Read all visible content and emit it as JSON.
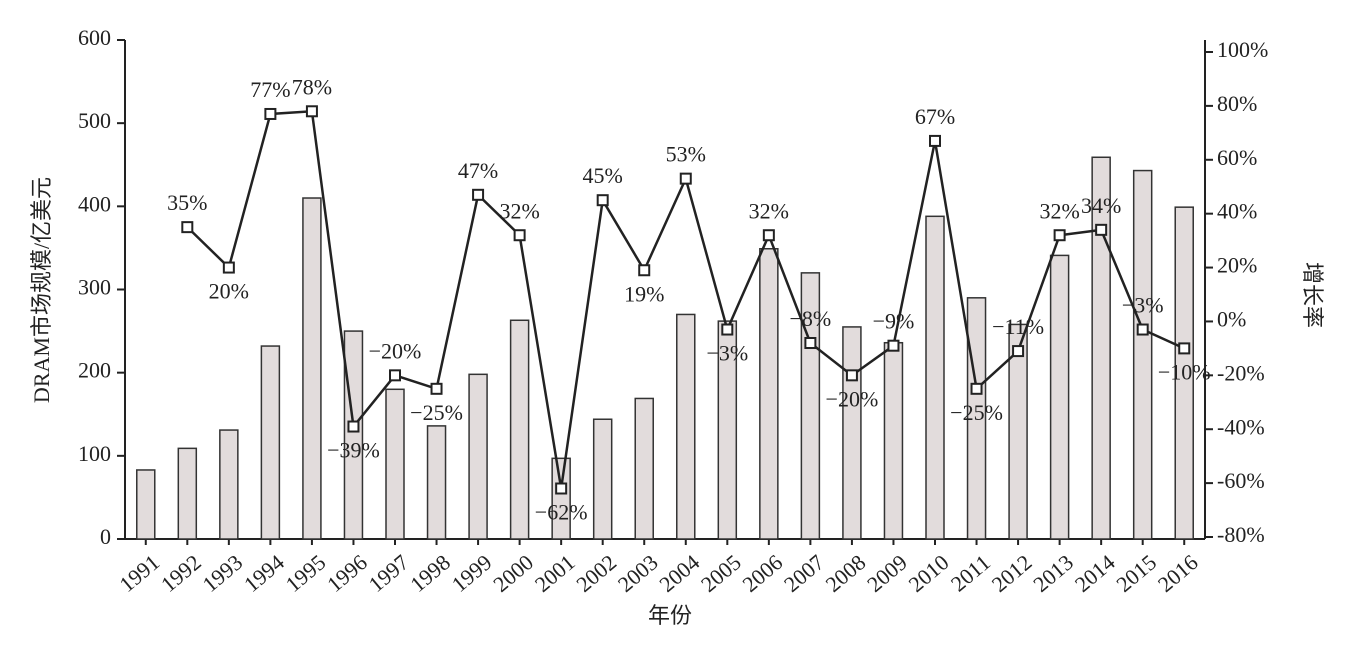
{
  "chart_data": {
    "type": "bar_line",
    "categories": [
      "1991",
      "1992",
      "1993",
      "1994",
      "1995",
      "1996",
      "1997",
      "1998",
      "1999",
      "2000",
      "2001",
      "2002",
      "2003",
      "2004",
      "2005",
      "2006",
      "2007",
      "2008",
      "2009",
      "2010",
      "2011",
      "2012",
      "2013",
      "2014",
      "2015",
      "2016"
    ],
    "x_label": "年份",
    "y_label": "DRAM市场规模/亿美元",
    "y2_label": "增长率",
    "ylim": [
      0,
      600
    ],
    "yticks": [
      0,
      100,
      200,
      300,
      400,
      500,
      600
    ],
    "y2lim": [
      -80,
      100
    ],
    "y2ticks": [
      {
        "value": -80,
        "label": "-80%"
      },
      {
        "value": -60,
        "label": "-60%"
      },
      {
        "value": -40,
        "label": "-40%"
      },
      {
        "value": -20,
        "label": "-20%"
      },
      {
        "value": 0,
        "label": "0%"
      },
      {
        "value": 20,
        "label": "20%"
      },
      {
        "value": 40,
        "label": "40%"
      },
      {
        "value": 60,
        "label": "60%"
      },
      {
        "value": 80,
        "label": "80%"
      },
      {
        "value": 100,
        "label": "100%"
      }
    ],
    "series": [
      {
        "type": "bar",
        "color": "#e2dcdc",
        "values": [
          83,
          109,
          131,
          232,
          410,
          250,
          180,
          136,
          198,
          263,
          97,
          144,
          169,
          270,
          262,
          349,
          320,
          255,
          236,
          388,
          290,
          258,
          341,
          459,
          443,
          399
        ]
      },
      {
        "type": "line",
        "axis": "y2",
        "color": "#222222",
        "values": [
          null,
          35,
          20,
          77,
          78,
          -39,
          -20,
          -25,
          47,
          32,
          -62,
          45,
          19,
          53,
          -3,
          32,
          -8,
          -20,
          -9,
          67,
          -25,
          -11,
          32,
          34,
          -3,
          -10
        ],
        "value_labels": [
          null,
          "35%",
          "20%",
          "77%",
          "78%",
          "−39%",
          "−20%",
          "−25%",
          "47%",
          "32%",
          "−62%",
          "45%",
          "19%",
          "53%",
          "−3%",
          "32%",
          "−8%",
          "−20%",
          "−9%",
          "67%",
          "−25%",
          "−11%",
          "32%",
          "34%",
          "−3%",
          "−10%"
        ]
      }
    ]
  }
}
